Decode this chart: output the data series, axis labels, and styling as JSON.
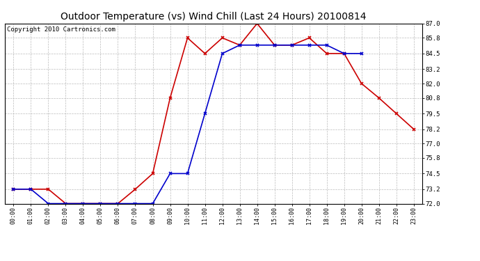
{
  "title": "Outdoor Temperature (vs) Wind Chill (Last 24 Hours) 20100814",
  "copyright": "Copyright 2010 Cartronics.com",
  "x_labels": [
    "00:00",
    "01:00",
    "02:00",
    "03:00",
    "04:00",
    "05:00",
    "06:00",
    "07:00",
    "08:00",
    "09:00",
    "10:00",
    "11:00",
    "12:00",
    "13:00",
    "14:00",
    "15:00",
    "16:00",
    "17:00",
    "18:00",
    "19:00",
    "20:00",
    "21:00",
    "22:00",
    "23:00"
  ],
  "temp_red": [
    73.2,
    73.2,
    73.2,
    72.0,
    72.0,
    72.0,
    72.0,
    73.2,
    74.5,
    80.8,
    85.8,
    84.5,
    85.8,
    85.2,
    87.0,
    85.2,
    85.2,
    85.8,
    84.5,
    84.5,
    82.0,
    80.8,
    79.5,
    78.2
  ],
  "wind_blue": [
    73.2,
    73.2,
    72.0,
    72.0,
    72.0,
    72.0,
    72.0,
    72.0,
    72.0,
    74.5,
    74.5,
    79.5,
    84.5,
    85.2,
    85.2,
    85.2,
    85.2,
    85.2,
    85.2,
    84.5,
    84.5,
    null,
    null,
    null
  ],
  "ylim_min": 72.0,
  "ylim_max": 87.0,
  "yticks": [
    72.0,
    73.2,
    74.5,
    75.8,
    77.0,
    78.2,
    79.5,
    80.8,
    82.0,
    83.2,
    84.5,
    85.8,
    87.0
  ],
  "red_color": "#cc0000",
  "blue_color": "#0000cc",
  "grid_color": "#bbbbbb",
  "bg_color": "#ffffff",
  "plot_bg_color": "#ffffff",
  "title_fontsize": 10,
  "copyright_fontsize": 6.5
}
